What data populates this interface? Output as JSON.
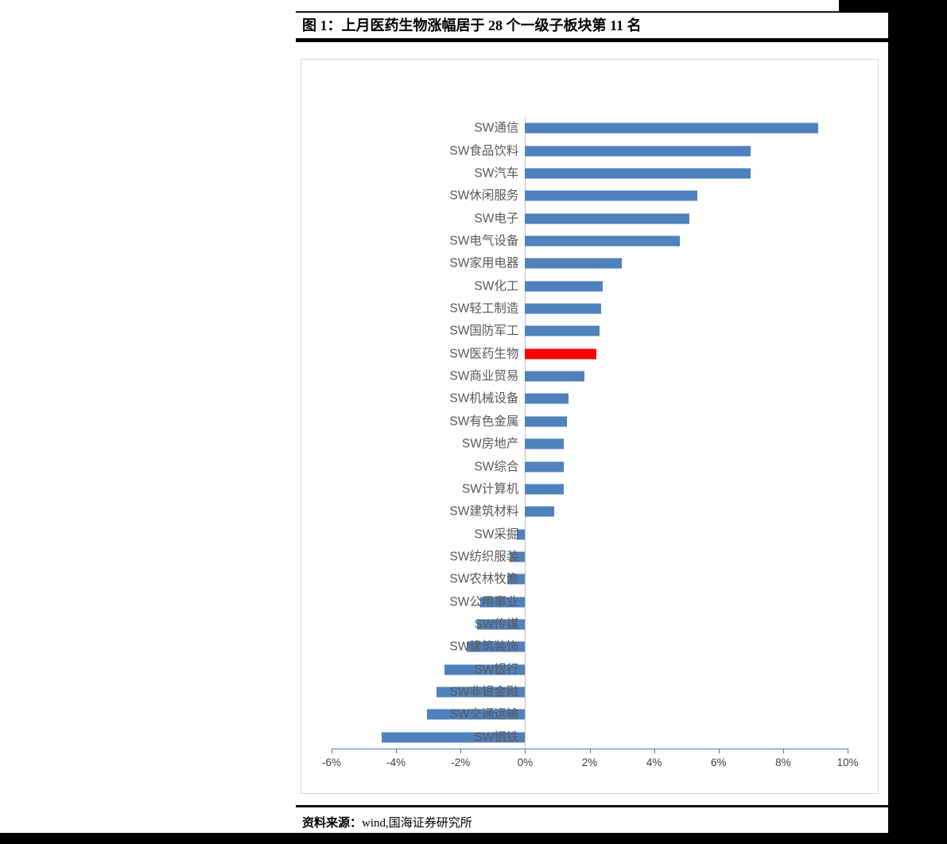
{
  "title": "图 1：上月医药生物涨幅居于 28 个一级子板块第 11 名",
  "footer": {
    "label": "资料来源：",
    "source": "wind,国海证券研究所"
  },
  "colors": {
    "bar_blue": "#4f81bd",
    "highlight_red": "#ff0000",
    "axis_blue": "#4a7ebb",
    "label_gray": "#595959"
  },
  "chart_data": {
    "type": "bar",
    "orientation": "horizontal",
    "title": "上月医药生物涨幅居于 28 个一级子板块第 11 名",
    "xlabel": "",
    "ylabel": "",
    "xlim": [
      -6,
      10
    ],
    "grid": false,
    "legend": "none",
    "bar_color": "#4f81bd",
    "highlight": {
      "category": "SW医药生物",
      "color": "#ff0000",
      "rank_note": "第 11 名"
    },
    "categories": [
      "SW通信",
      "SW食品饮料",
      "SW汽车",
      "SW休闲服务",
      "SW电子",
      "SW电气设备",
      "SW家用电器",
      "SW化工",
      "SW轻工制造",
      "SW国防军工",
      "SW医药生物",
      "SW商业贸易",
      "SW机械设备",
      "SW有色金属",
      "SW房地产",
      "SW综合",
      "SW计算机",
      "SW建筑材料",
      "SW采掘",
      "SW纺织服装",
      "SW农林牧渔",
      "SW公用事业",
      "SW传媒",
      "SW建筑装饰",
      "SW银行",
      "SW非银金融",
      "SW交通运输",
      "SW钢铁"
    ],
    "values": [
      9.1,
      7.0,
      7.0,
      5.35,
      5.1,
      4.8,
      3.0,
      2.4,
      2.35,
      2.3,
      2.2,
      1.85,
      1.35,
      1.3,
      1.2,
      1.2,
      1.2,
      0.9,
      -0.25,
      -0.45,
      -0.55,
      -1.4,
      -1.5,
      -1.8,
      -2.5,
      -2.75,
      -3.05,
      -4.45
    ],
    "xticks": [
      "-6%",
      "-4%",
      "-2%",
      "0%",
      "2%",
      "4%",
      "6%",
      "8%",
      "10%"
    ],
    "xtick_values": [
      -6,
      -4,
      -2,
      0,
      2,
      4,
      6,
      8,
      10
    ]
  }
}
